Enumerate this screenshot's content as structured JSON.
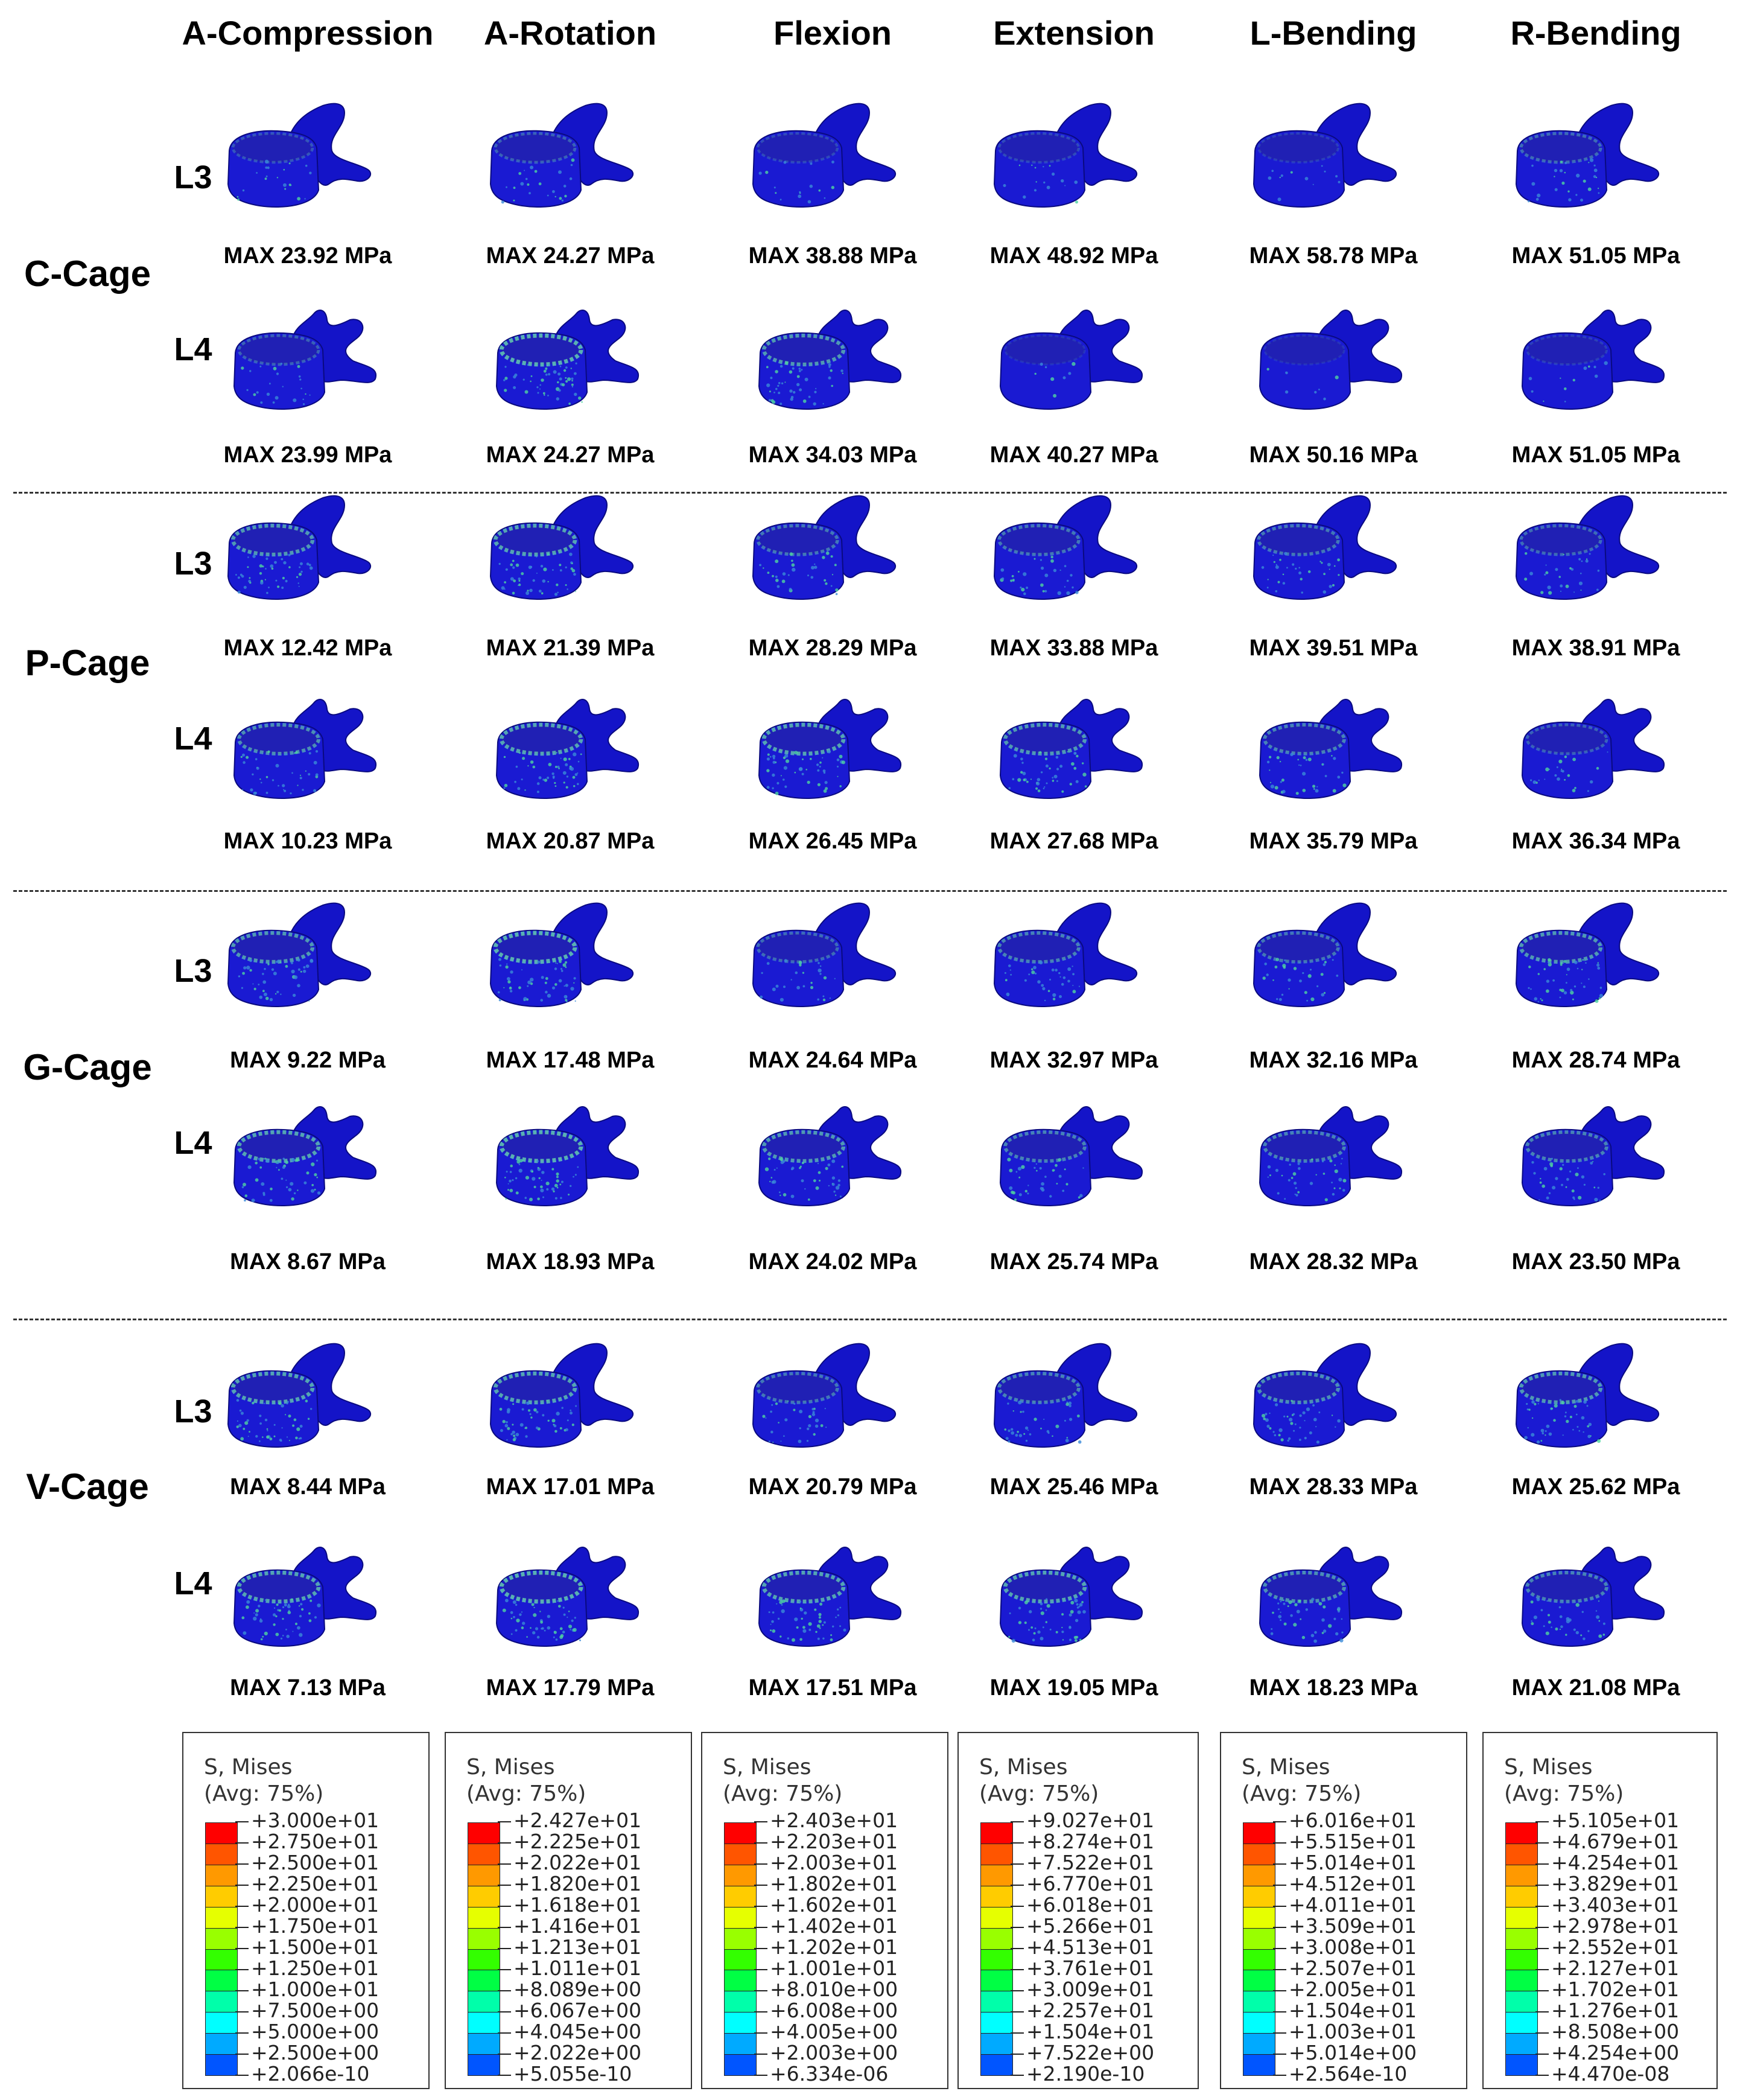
{
  "columns": [
    "A-Compression",
    "A-Rotation",
    "Flexion",
    "Extension",
    "L-Bending",
    "R-Bending"
  ],
  "groups": [
    {
      "name": "C-Cage",
      "L3": {
        "label": "L3",
        "max": [
          "MAX 23.92 MPa",
          "MAX 24.27 MPa",
          "MAX 38.88 MPa",
          "MAX 48.92 MPa",
          "MAX 58.78 MPa",
          "MAX 51.05 MPa"
        ]
      },
      "L4": {
        "label": "L4",
        "max": [
          "MAX 23.99 MPa",
          "MAX 24.27 MPa",
          "MAX 34.03 MPa",
          "MAX 40.27 MPa",
          "MAX 50.16 MPa",
          "MAX 51.05 MPa"
        ]
      }
    },
    {
      "name": "P-Cage",
      "L3": {
        "label": "L3",
        "max": [
          "MAX 12.42 MPa",
          "MAX 21.39 MPa",
          "MAX 28.29 MPa",
          "MAX 33.88 MPa",
          "MAX 39.51 MPa",
          "MAX 38.91 MPa"
        ]
      },
      "L4": {
        "label": "L4",
        "max": [
          "MAX 10.23 MPa",
          "MAX 20.87 MPa",
          "MAX 26.45 MPa",
          "MAX 27.68 MPa",
          "MAX 35.79 MPa",
          "MAX 36.34 MPa"
        ]
      }
    },
    {
      "name": "G-Cage",
      "L3": {
        "label": "L3",
        "max": [
          "MAX 9.22 MPa",
          "MAX 17.48 MPa",
          "MAX 24.64 MPa",
          "MAX 32.97 MPa",
          "MAX 32.16 MPa",
          "MAX 28.74 MPa"
        ]
      },
      "L4": {
        "label": "L4",
        "max": [
          "MAX 8.67 MPa",
          "MAX 18.93 MPa",
          "MAX 24.02 MPa",
          "MAX 25.74 MPa",
          "MAX 28.32 MPa",
          "MAX 23.50 MPa"
        ]
      }
    },
    {
      "name": "V-Cage",
      "L3": {
        "label": "L3",
        "max": [
          "MAX 8.44 MPa",
          "MAX 17.01 MPa",
          "MAX 20.79 MPa",
          "MAX 25.46 MPa",
          "MAX 28.33 MPa",
          "MAX 25.62 MPa"
        ]
      },
      "L4": {
        "label": "L4",
        "max": [
          "MAX 7.13 MPa",
          "MAX 17.79 MPa",
          "MAX 17.51 MPa",
          "MAX 19.05 MPa",
          "MAX 18.23 MPa",
          "MAX 21.08 MPa"
        ]
      }
    }
  ],
  "legend_title_1": "S, Mises",
  "legend_title_2": "(Avg: 75%)",
  "legend_colors": [
    "#ff0000",
    "#ff5500",
    "#ff9900",
    "#ffcc00",
    "#e6ff00",
    "#99ff00",
    "#33ff00",
    "#00ff44",
    "#00ffaa",
    "#00ffff",
    "#00aaff",
    "#0055ff",
    "#0000ff"
  ],
  "legends": [
    [
      "+3.000e+01",
      "+2.750e+01",
      "+2.500e+01",
      "+2.250e+01",
      "+2.000e+01",
      "+1.750e+01",
      "+1.500e+01",
      "+1.250e+01",
      "+1.000e+01",
      "+7.500e+00",
      "+5.000e+00",
      "+2.500e+00",
      "+2.066e-10"
    ],
    [
      "+2.427e+01",
      "+2.225e+01",
      "+2.022e+01",
      "+1.820e+01",
      "+1.618e+01",
      "+1.416e+01",
      "+1.213e+01",
      "+1.011e+01",
      "+8.089e+00",
      "+6.067e+00",
      "+4.045e+00",
      "+2.022e+00",
      "+5.055e-10"
    ],
    [
      "+2.403e+01",
      "+2.203e+01",
      "+2.003e+01",
      "+1.802e+01",
      "+1.602e+01",
      "+1.402e+01",
      "+1.202e+01",
      "+1.001e+01",
      "+8.010e+00",
      "+6.008e+00",
      "+4.005e+00",
      "+2.003e+00",
      "+6.334e-06"
    ],
    [
      "+9.027e+01",
      "+8.274e+01",
      "+7.522e+01",
      "+6.770e+01",
      "+6.018e+01",
      "+5.266e+01",
      "+4.513e+01",
      "+3.761e+01",
      "+3.009e+01",
      "+2.257e+01",
      "+1.504e+01",
      "+7.522e+00",
      "+2.190e-10"
    ],
    [
      "+6.016e+01",
      "+5.515e+01",
      "+5.014e+01",
      "+4.512e+01",
      "+4.011e+01",
      "+3.509e+01",
      "+3.008e+01",
      "+2.507e+01",
      "+2.005e+01",
      "+1.504e+01",
      "+1.003e+01",
      "+5.014e+00",
      "+2.564e-10"
    ],
    [
      "+5.105e+01",
      "+4.679e+01",
      "+4.254e+01",
      "+3.829e+01",
      "+3.403e+01",
      "+2.978e+01",
      "+2.552e+01",
      "+2.127e+01",
      "+1.702e+01",
      "+1.276e+01",
      "+8.508e+00",
      "+4.254e+00",
      "+4.470e-08"
    ]
  ]
}
